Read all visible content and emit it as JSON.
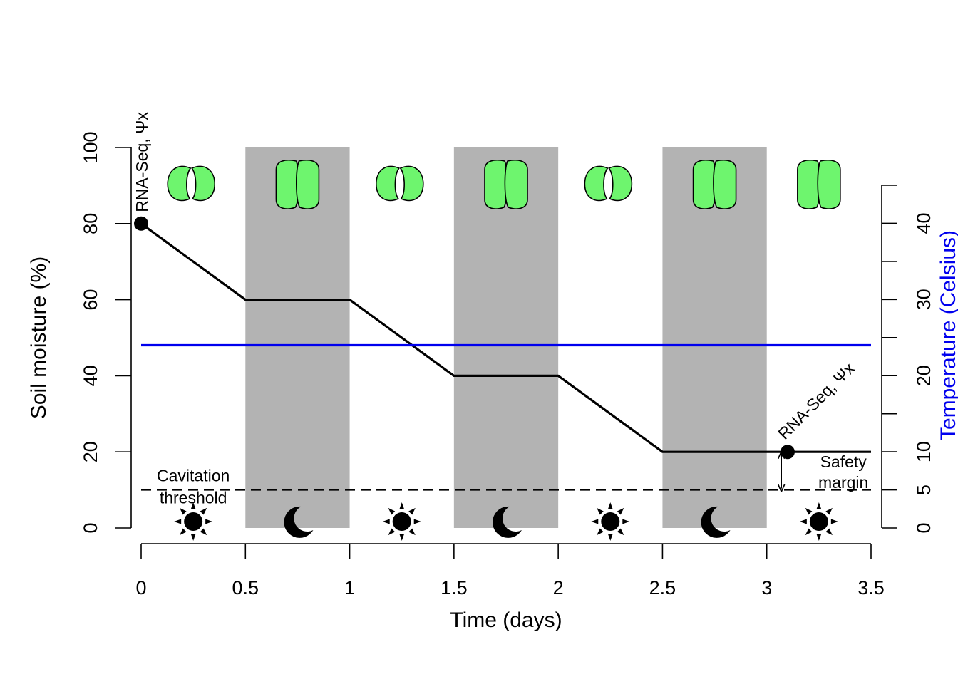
{
  "chart_data": {
    "type": "line",
    "title": "",
    "xlabel": "Time (days)",
    "ylabel": "Soil moisture (%)",
    "y2label": "Temperature (Celsius)",
    "xlim": [
      0,
      3.5
    ],
    "ylim": [
      0,
      100
    ],
    "y2lim": [
      0,
      45
    ],
    "x_ticks": [
      0,
      0.5,
      1,
      1.5,
      2,
      2.5,
      3,
      3.5
    ],
    "x_tick_labels": [
      "0",
      "0.5",
      "1",
      "1.5",
      "2",
      "2.5",
      "3",
      "3.5"
    ],
    "y_ticks": [
      0,
      20,
      40,
      60,
      80,
      100
    ],
    "y_tick_labels": [
      "0",
      "20",
      "40",
      "60",
      "80",
      "100"
    ],
    "y2_ticks": [
      0,
      5,
      10,
      15,
      20,
      25,
      30,
      35,
      40,
      45
    ],
    "y2_tick_labels": [
      {
        "value": 0,
        "label": "0"
      },
      {
        "value": 5,
        "label": "5"
      },
      {
        "value": 10,
        "label": "10"
      },
      {
        "value": 20,
        "label": "20"
      },
      {
        "value": 30,
        "label": "30"
      },
      {
        "value": 40,
        "label": "40"
      }
    ],
    "grid": false,
    "night_periods": [
      [
        0.5,
        1.0
      ],
      [
        1.5,
        2.0
      ],
      [
        2.5,
        3.0
      ]
    ],
    "series": [
      {
        "axis": "left",
        "color": "#000000",
        "x": [
          0,
          0.5,
          1,
          1.5,
          2,
          2.5,
          3.5
        ],
        "y": [
          80,
          60,
          60,
          40,
          40,
          20,
          20
        ]
      },
      {
        "axis": "right",
        "color": "#0000ee",
        "x": [
          0,
          3.5
        ],
        "y": [
          24,
          24
        ]
      }
    ],
    "threshold": {
      "y": 10,
      "style": "dashed",
      "label_line1": "Cavitation",
      "label_line2": "threshold"
    },
    "sampling_points": [
      {
        "x": 0,
        "y": 80,
        "label": "RNA-Seq, Ψx"
      },
      {
        "x": 3.1,
        "y": 20,
        "label": "RNA-Seq, Ψx"
      }
    ],
    "safety_margin": {
      "x": 3.07,
      "from": 10,
      "to": 20,
      "label_line1": "Safety",
      "label_line2": "margin"
    },
    "stomata_icons": [
      {
        "x": 0.24,
        "state": "closed"
      },
      {
        "x": 0.75,
        "state": "open"
      },
      {
        "x": 1.24,
        "state": "closed"
      },
      {
        "x": 1.75,
        "state": "open"
      },
      {
        "x": 2.24,
        "state": "closed"
      },
      {
        "x": 2.75,
        "state": "open"
      },
      {
        "x": 3.25,
        "state": "open"
      }
    ],
    "sky_icons": [
      {
        "x": 0.25,
        "icon": "sun-icon"
      },
      {
        "x": 0.75,
        "icon": "moon-icon"
      },
      {
        "x": 1.25,
        "icon": "sun-icon"
      },
      {
        "x": 1.75,
        "icon": "moon-icon"
      },
      {
        "x": 2.25,
        "icon": "sun-icon"
      },
      {
        "x": 2.75,
        "icon": "moon-icon"
      },
      {
        "x": 3.25,
        "icon": "sun-icon"
      }
    ],
    "colors": {
      "night_band": "#b3b3b3",
      "stomata_fill": "#6ef56e",
      "temperature_line": "#0000ee"
    }
  }
}
